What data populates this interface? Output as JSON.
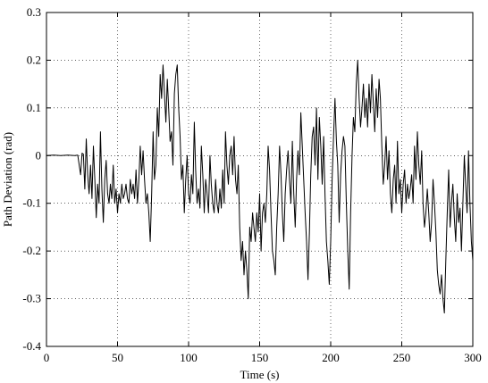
{
  "chart_data": {
    "type": "line",
    "xlabel": "Time (s)",
    "ylabel": "Path Deviation (rad)",
    "xlim": [
      0,
      300
    ],
    "ylim": [
      -0.4,
      0.3
    ],
    "grid": true,
    "x_ticks": [
      0,
      50,
      100,
      150,
      200,
      250,
      300
    ],
    "y_ticks": [
      -0.4,
      -0.3,
      -0.2,
      -0.1,
      0,
      0.1,
      0.2,
      0.3
    ],
    "x_tick_labels": [
      "0",
      "50",
      "100",
      "150",
      "200",
      "250",
      "300"
    ],
    "y_tick_labels": [
      "-0.4",
      "-0.3",
      "-0.2",
      "-0.1",
      "0",
      "0.1",
      "0.2",
      "0.3"
    ],
    "series": [
      {
        "color": "#000000",
        "points": [
          [
            0,
            0
          ],
          [
            5,
            0.001
          ],
          [
            10,
            0
          ],
          [
            15,
            0.001
          ],
          [
            20,
            0
          ],
          [
            22,
            0.001
          ],
          [
            24,
            -0.04
          ],
          [
            25,
            0.005
          ],
          [
            26,
            0.003
          ],
          [
            27,
            -0.07
          ],
          [
            28,
            0.035
          ],
          [
            29,
            -0.04
          ],
          [
            30,
            -0.08
          ],
          [
            31,
            -0.02
          ],
          [
            32,
            -0.09
          ],
          [
            33,
            0.02
          ],
          [
            34,
            -0.05
          ],
          [
            35,
            -0.13
          ],
          [
            36,
            -0.06
          ],
          [
            37,
            -0.1
          ],
          [
            38,
            0.05
          ],
          [
            39,
            -0.07
          ],
          [
            40,
            -0.14
          ],
          [
            41,
            -0.05
          ],
          [
            42,
            -0.01
          ],
          [
            43,
            -0.08
          ],
          [
            44,
            -0.1
          ],
          [
            45,
            -0.06
          ],
          [
            46,
            -0.09
          ],
          [
            47,
            -0.02
          ],
          [
            48,
            -0.1
          ],
          [
            49,
            -0.07
          ],
          [
            50,
            -0.12
          ],
          [
            51,
            -0.08
          ],
          [
            52,
            -0.1
          ],
          [
            53,
            -0.06
          ],
          [
            54,
            -0.09
          ],
          [
            55,
            -0.08
          ],
          [
            56,
            -0.06
          ],
          [
            57,
            -0.09
          ],
          [
            58,
            -0.1
          ],
          [
            59,
            -0.05
          ],
          [
            60,
            -0.08
          ],
          [
            61,
            -0.06
          ],
          [
            62,
            -0.09
          ],
          [
            63,
            -0.03
          ],
          [
            64,
            -0.1
          ],
          [
            65,
            -0.05
          ],
          [
            66,
            0.02
          ],
          [
            67,
            -0.04
          ],
          [
            68,
            0.01
          ],
          [
            69,
            -0.05
          ],
          [
            70,
            -0.1
          ],
          [
            71,
            -0.08
          ],
          [
            72,
            -0.12
          ],
          [
            73,
            -0.18
          ],
          [
            74,
            -0.08
          ],
          [
            75,
            0.05
          ],
          [
            76,
            -0.05
          ],
          [
            77,
            -0.02
          ],
          [
            78,
            0.1
          ],
          [
            79,
            0.04
          ],
          [
            80,
            0.17
          ],
          [
            81,
            0.12
          ],
          [
            82,
            0.19
          ],
          [
            83,
            0.13
          ],
          [
            84,
            0.07
          ],
          [
            85,
            0.16
          ],
          [
            86,
            0.1
          ],
          [
            87,
            0.03
          ],
          [
            88,
            0.05
          ],
          [
            89,
            -0.02
          ],
          [
            90,
            0.13
          ],
          [
            91,
            0.17
          ],
          [
            92,
            0.19
          ],
          [
            93,
            0.1
          ],
          [
            94,
            0.04
          ],
          [
            95,
            -0.05
          ],
          [
            96,
            -0.02
          ],
          [
            97,
            -0.12
          ],
          [
            98,
            -0.05
          ],
          [
            99,
            0
          ],
          [
            100,
            -0.08
          ],
          [
            101,
            -0.1
          ],
          [
            102,
            -0.04
          ],
          [
            103,
            -0.08
          ],
          [
            104,
            0.07
          ],
          [
            105,
            -0.03
          ],
          [
            106,
            -0.1
          ],
          [
            107,
            -0.07
          ],
          [
            108,
            -0.11
          ],
          [
            109,
            0.02
          ],
          [
            110,
            -0.04
          ],
          [
            111,
            -0.12
          ],
          [
            112,
            -0.05
          ],
          [
            113,
            -0.08
          ],
          [
            114,
            -0.12
          ],
          [
            115,
            0
          ],
          [
            116,
            -0.06
          ],
          [
            117,
            -0.1
          ],
          [
            118,
            -0.12
          ],
          [
            119,
            -0.05
          ],
          [
            120,
            -0.1
          ],
          [
            121,
            -0.12
          ],
          [
            122,
            -0.07
          ],
          [
            123,
            -0.11
          ],
          [
            124,
            -0.03
          ],
          [
            125,
            -0.1
          ],
          [
            126,
            0.05
          ],
          [
            127,
            -0.02
          ],
          [
            128,
            -0.06
          ],
          [
            129,
            0
          ],
          [
            130,
            0.02
          ],
          [
            131,
            -0.04
          ],
          [
            132,
            0.04
          ],
          [
            133,
            -0.05
          ],
          [
            134,
            -0.08
          ],
          [
            135,
            -0.02
          ],
          [
            136,
            -0.15
          ],
          [
            137,
            -0.22
          ],
          [
            138,
            -0.18
          ],
          [
            139,
            -0.25
          ],
          [
            140,
            -0.2
          ],
          [
            141,
            -0.24
          ],
          [
            142,
            -0.3
          ],
          [
            143,
            -0.15
          ],
          [
            144,
            -0.18
          ],
          [
            145,
            -0.12
          ],
          [
            146,
            -0.15
          ],
          [
            147,
            -0.18
          ],
          [
            148,
            -0.12
          ],
          [
            149,
            -0.16
          ],
          [
            150,
            -0.08
          ],
          [
            151,
            -0.2
          ],
          [
            152,
            -0.12
          ],
          [
            153,
            -0.1
          ],
          [
            154,
            -0.14
          ],
          [
            155,
            -0.08
          ],
          [
            156,
            0.02
          ],
          [
            157,
            -0.03
          ],
          [
            158,
            -0.12
          ],
          [
            159,
            -0.2
          ],
          [
            160,
            -0.22
          ],
          [
            161,
            -0.25
          ],
          [
            162,
            -0.15
          ],
          [
            163,
            -0.08
          ],
          [
            164,
            0.02
          ],
          [
            165,
            -0.04
          ],
          [
            166,
            -0.12
          ],
          [
            167,
            -0.18
          ],
          [
            168,
            -0.08
          ],
          [
            169,
            -0.03
          ],
          [
            170,
            0.01
          ],
          [
            171,
            -0.05
          ],
          [
            172,
            -0.1
          ],
          [
            173,
            0.03
          ],
          [
            174,
            -0.08
          ],
          [
            175,
            -0.15
          ],
          [
            176,
            -0.05
          ],
          [
            177,
            0.01
          ],
          [
            178,
            -0.04
          ],
          [
            179,
            0.09
          ],
          [
            180,
            0.02
          ],
          [
            181,
            -0.05
          ],
          [
            182,
            -0.12
          ],
          [
            183,
            -0.18
          ],
          [
            184,
            -0.26
          ],
          [
            185,
            -0.16
          ],
          [
            186,
            -0.04
          ],
          [
            187,
            0.04
          ],
          [
            188,
            0.06
          ],
          [
            189,
            -0.02
          ],
          [
            190,
            0.1
          ],
          [
            191,
            -0.05
          ],
          [
            192,
            0.08
          ],
          [
            193,
            0.02
          ],
          [
            194,
            -0.06
          ],
          [
            195,
            0.04
          ],
          [
            196,
            -0.08
          ],
          [
            197,
            -0.18
          ],
          [
            198,
            -0.22
          ],
          [
            199,
            -0.27
          ],
          [
            200,
            -0.18
          ],
          [
            201,
            -0.05
          ],
          [
            202,
            0.04
          ],
          [
            203,
            0.12
          ],
          [
            204,
            0.03
          ],
          [
            205,
            -0.02
          ],
          [
            206,
            -0.14
          ],
          [
            207,
            -0.04
          ],
          [
            208,
            0.01
          ],
          [
            209,
            0.04
          ],
          [
            210,
            0.02
          ],
          [
            211,
            -0.1
          ],
          [
            212,
            -0.2
          ],
          [
            213,
            -0.28
          ],
          [
            214,
            -0.12
          ],
          [
            215,
            0
          ],
          [
            216,
            0.08
          ],
          [
            217,
            0.05
          ],
          [
            218,
            0.15
          ],
          [
            219,
            0.2
          ],
          [
            220,
            0.12
          ],
          [
            221,
            0.06
          ],
          [
            222,
            0.1
          ],
          [
            223,
            0.15
          ],
          [
            224,
            0.08
          ],
          [
            225,
            0.12
          ],
          [
            226,
            0.06
          ],
          [
            227,
            0.15
          ],
          [
            228,
            0.09
          ],
          [
            229,
            0.17
          ],
          [
            230,
            0.11
          ],
          [
            231,
            0.05
          ],
          [
            232,
            0.14
          ],
          [
            233,
            0.08
          ],
          [
            234,
            0.16
          ],
          [
            235,
            0.12
          ],
          [
            236,
            0.02
          ],
          [
            237,
            -0.06
          ],
          [
            238,
            -0.02
          ],
          [
            239,
            0.04
          ],
          [
            240,
            -0.05
          ],
          [
            241,
            0.01
          ],
          [
            242,
            -0.08
          ],
          [
            243,
            -0.12
          ],
          [
            244,
            -0.05
          ],
          [
            245,
            -0.02
          ],
          [
            246,
            -0.1
          ],
          [
            247,
            0.03
          ],
          [
            248,
            -0.08
          ],
          [
            249,
            -0.05
          ],
          [
            250,
            -0.12
          ],
          [
            251,
            -0.06
          ],
          [
            252,
            -0.03
          ],
          [
            253,
            -0.1
          ],
          [
            254,
            -0.06
          ],
          [
            255,
            -0.09
          ],
          [
            256,
            -0.07
          ],
          [
            257,
            -0.04
          ],
          [
            258,
            -0.1
          ],
          [
            259,
            0.02
          ],
          [
            260,
            -0.05
          ],
          [
            261,
            0.05
          ],
          [
            262,
            -0.02
          ],
          [
            263,
            -0.06
          ],
          [
            264,
            0.01
          ],
          [
            265,
            -0.1
          ],
          [
            266,
            -0.15
          ],
          [
            267,
            -0.12
          ],
          [
            268,
            -0.07
          ],
          [
            269,
            -0.12
          ],
          [
            270,
            -0.18
          ],
          [
            271,
            -0.14
          ],
          [
            272,
            -0.05
          ],
          [
            273,
            -0.1
          ],
          [
            274,
            -0.16
          ],
          [
            275,
            -0.24
          ],
          [
            276,
            -0.27
          ],
          [
            277,
            -0.29
          ],
          [
            278,
            -0.25
          ],
          [
            279,
            -0.3
          ],
          [
            280,
            -0.33
          ],
          [
            281,
            -0.22
          ],
          [
            282,
            -0.12
          ],
          [
            283,
            -0.03
          ],
          [
            284,
            -0.15
          ],
          [
            285,
            -0.1
          ],
          [
            286,
            -0.06
          ],
          [
            287,
            -0.13
          ],
          [
            288,
            -0.18
          ],
          [
            289,
            -0.08
          ],
          [
            290,
            -0.14
          ],
          [
            291,
            -0.11
          ],
          [
            292,
            -0.2
          ],
          [
            293,
            -0.1
          ],
          [
            294,
            0
          ],
          [
            295,
            -0.06
          ],
          [
            296,
            -0.12
          ],
          [
            297,
            0.01
          ],
          [
            298,
            -0.1
          ],
          [
            299,
            -0.18
          ],
          [
            300,
            -0.22
          ]
        ]
      }
    ]
  }
}
